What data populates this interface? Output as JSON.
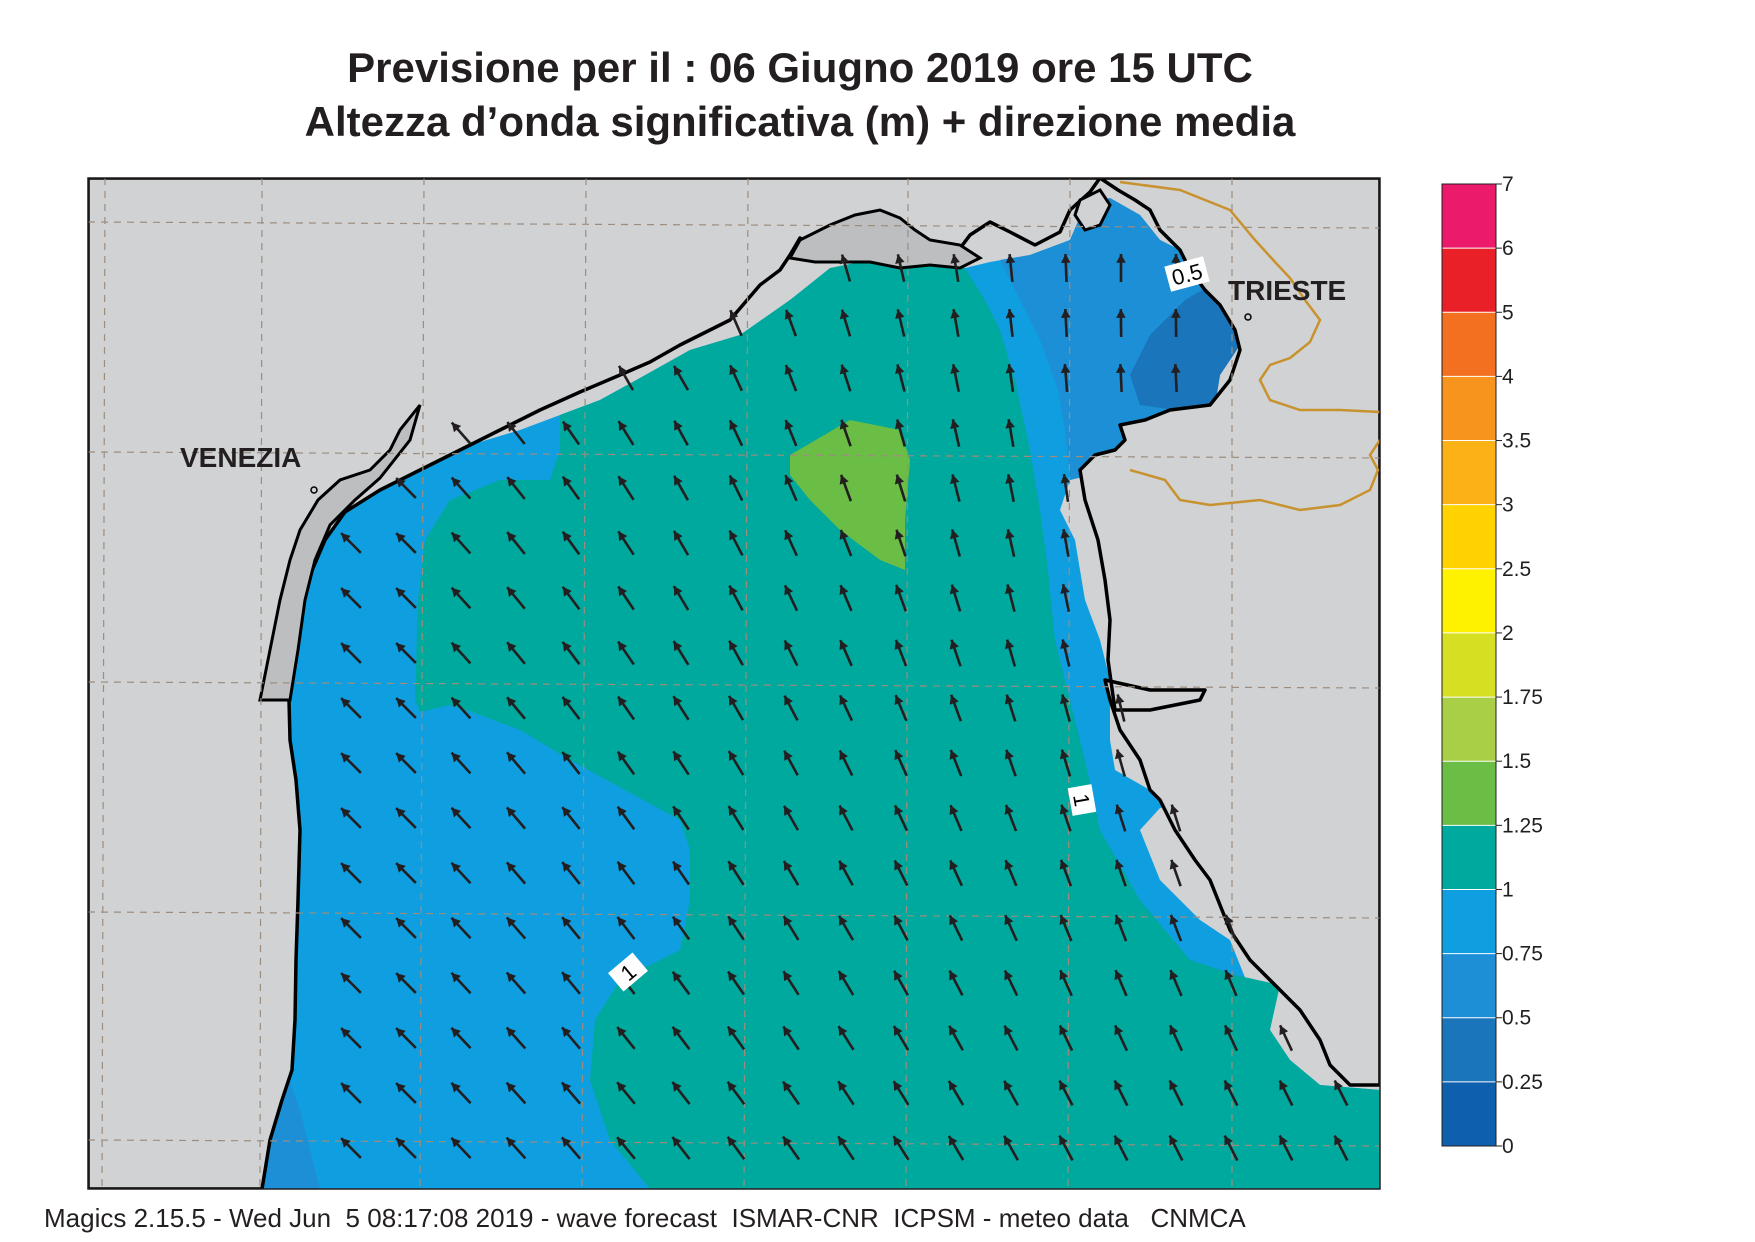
{
  "title": {
    "line1": "Previsione per il  :  06   Giugno  2019   ore 15 UTC",
    "line2": "Altezza d’onda significativa (m) + direzione media"
  },
  "cities": {
    "venezia": "VENEZIA",
    "trieste": "TRIESTE"
  },
  "contour_labels": {
    "east": "1",
    "south": "1",
    "north": "0.5"
  },
  "legend": {
    "ticks": [
      "7",
      "6",
      "5",
      "4",
      "3.5",
      "3",
      "2.5",
      "2",
      "1.75",
      "1.5",
      "1.25",
      "1",
      "0.75",
      "0.5",
      "0.25",
      "0"
    ],
    "colors": [
      "#ec1a6b",
      "#e92028",
      "#f37021",
      "#f7941d",
      "#fbb216",
      "#ffd200",
      "#fff200",
      "#d7df23",
      "#a8cf45",
      "#6abd45",
      "#00a99d",
      "#0f9fe1",
      "#1c8fd6",
      "#1b75bb",
      "#0e5fae"
    ]
  },
  "colors": {
    "land": "#d1d2d4",
    "sea_1_125": "#00a99d",
    "sea_075_1": "#0f9fe1",
    "sea_05_075": "#1c8fd6",
    "sea_025_05": "#1b75bb",
    "sea_125_15": "#6abd45",
    "border": "#c8922e",
    "arrow": "#231f20"
  },
  "footer": "Magics 2.15.5 - Wed Jun  5 08:17:08 2019 - wave forecast  ISMAR-CNR  ICPSM - meteo data   CNMCA"
}
